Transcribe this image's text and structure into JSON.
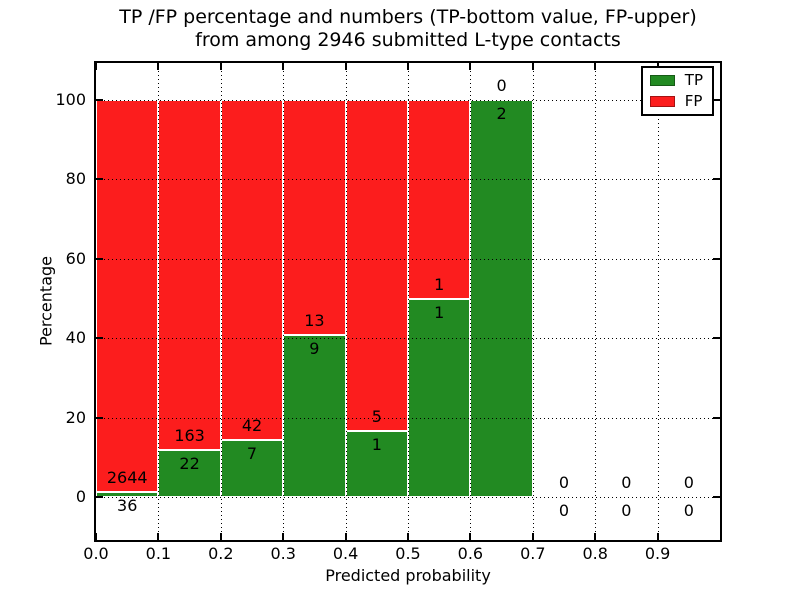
{
  "chart_data": {
    "type": "bar",
    "subtype": "stacked-percentage-with-count-annotations",
    "title_line1": "TP /FP percentage and numbers (TP-bottom value, FP-upper)",
    "title_line2": "from among 2946 submitted L-type contacts",
    "title": "TP /FP percentage and numbers (TP-bottom value, FP-upper) from among 2946 submitted L-type contacts",
    "xlabel": "Predicted probability",
    "ylabel": "Percentage",
    "total_contacts": 2946,
    "xlim": [
      0.0,
      1.0
    ],
    "ylim": [
      -11,
      109
    ],
    "grid": true,
    "grid_style": "dotted",
    "bar_edge_color": "#ffffff",
    "xticks": [
      "0.0",
      "0.1",
      "0.2",
      "0.3",
      "0.4",
      "0.5",
      "0.6",
      "0.7",
      "0.8",
      "0.9"
    ],
    "yticks": [
      "0",
      "20",
      "40",
      "60",
      "80",
      "100"
    ],
    "categories": [
      "0.0-0.1",
      "0.1-0.2",
      "0.2-0.3",
      "0.3-0.4",
      "0.4-0.5",
      "0.5-0.6",
      "0.6-0.7",
      "0.7-0.8",
      "0.8-0.9",
      "0.9-1.0"
    ],
    "series": [
      {
        "name": "TP",
        "position": "bottom",
        "values": [
          36,
          22,
          7,
          9,
          1,
          1,
          2,
          0,
          0,
          0
        ]
      },
      {
        "name": "FP",
        "position": "top",
        "values": [
          2644,
          163,
          42,
          13,
          5,
          1,
          0,
          0,
          0,
          0
        ]
      }
    ],
    "bins": [
      {
        "x_start": 0.0,
        "x_end": 0.1,
        "tp": 36,
        "fp": 2644
      },
      {
        "x_start": 0.1,
        "x_end": 0.2,
        "tp": 22,
        "fp": 163
      },
      {
        "x_start": 0.2,
        "x_end": 0.3,
        "tp": 7,
        "fp": 42
      },
      {
        "x_start": 0.3,
        "x_end": 0.4,
        "tp": 9,
        "fp": 13
      },
      {
        "x_start": 0.4,
        "x_end": 0.5,
        "tp": 1,
        "fp": 5
      },
      {
        "x_start": 0.5,
        "x_end": 0.6,
        "tp": 1,
        "fp": 1
      },
      {
        "x_start": 0.6,
        "x_end": 0.7,
        "tp": 2,
        "fp": 0
      },
      {
        "x_start": 0.7,
        "x_end": 0.8,
        "tp": 0,
        "fp": 0
      },
      {
        "x_start": 0.8,
        "x_end": 0.9,
        "tp": 0,
        "fp": 0
      },
      {
        "x_start": 0.9,
        "x_end": 1.0,
        "tp": 0,
        "fp": 0
      }
    ],
    "tp_percent_of_bin": [
      1.3,
      11.9,
      14.3,
      40.9,
      16.7,
      50.0,
      100.0,
      null,
      null,
      null
    ],
    "legend": {
      "position": "upper-right",
      "entries": [
        {
          "label": "TP",
          "color": "#228a22"
        },
        {
          "label": "FP",
          "color": "#fc1d1d"
        }
      ]
    }
  }
}
